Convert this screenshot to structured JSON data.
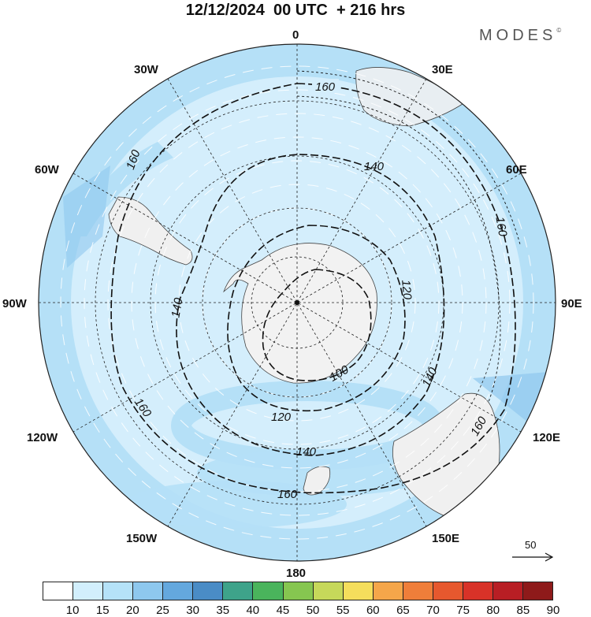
{
  "title": "12/12/2024  00 UTC  + 216 hrs",
  "brand": "MODES",
  "brand_mark": "©",
  "longitude_labels": {
    "n": "0",
    "ne30": "30E",
    "ne60": "60E",
    "e": "90E",
    "se120": "120E",
    "se150": "150E",
    "s": "180",
    "sw150": "150W",
    "sw120": "120W",
    "w": "90W",
    "nw60": "60W",
    "nw30": "30W"
  },
  "contour_labels": {
    "l160_top": "160",
    "l160_left": "160",
    "l160_right": "160",
    "l160_bl": "160",
    "l160_bottom": "160",
    "l160_br": "160",
    "l140_top": "140",
    "l140_left": "140",
    "l140_right": "140",
    "l140_bottom": "140",
    "l120_right": "120",
    "l120_bottom": "120",
    "l100": "100"
  },
  "reference_vector": {
    "value": "50",
    "icon": "arrow-right-icon"
  },
  "colorbar": {
    "ticks": [
      "10",
      "15",
      "20",
      "25",
      "30",
      "35",
      "40",
      "45",
      "50",
      "55",
      "60",
      "65",
      "70",
      "75",
      "80",
      "85",
      "90"
    ],
    "colors": [
      "#ffffff",
      "#d2effd",
      "#b5e2f8",
      "#8ec8ee",
      "#64a8de",
      "#4a8cc6",
      "#3ea38a",
      "#4ab45c",
      "#86c650",
      "#c6d85a",
      "#f5de5c",
      "#f5a64a",
      "#ef7e3a",
      "#e6582e",
      "#d83228",
      "#b81e24",
      "#8e1a1a"
    ]
  },
  "map_colors": {
    "ocean_light": "#d4eefc",
    "band_mid": "#b5e0f7",
    "band_strong": "#90c8ee",
    "land": "#f0f0f0",
    "antarctica": "#f2f2f2"
  }
}
